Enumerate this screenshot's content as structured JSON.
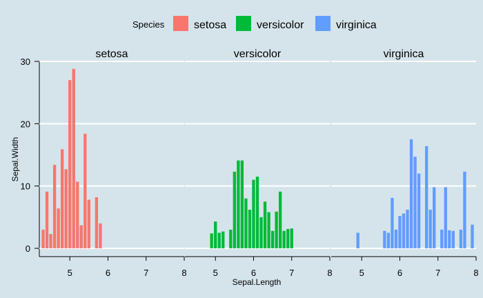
{
  "chart_data": {
    "type": "bar",
    "xlabel": "Sepal.Length",
    "ylabel": "Sepal.Width",
    "xlim": [
      4.2,
      8.0
    ],
    "ylim": [
      0,
      30
    ],
    "x_ticks": [
      5,
      6,
      7,
      8
    ],
    "y_ticks": [
      0,
      10,
      20,
      30
    ],
    "grid": true,
    "legend": {
      "title": "Species",
      "position": "top",
      "entries": [
        "setosa",
        "versicolor",
        "virginica"
      ]
    },
    "series": [
      {
        "name": "setosa",
        "color": "#f8766d",
        "x": [
          4.3,
          4.4,
          4.5,
          4.6,
          4.7,
          4.8,
          4.9,
          5.0,
          5.1,
          5.2,
          5.3,
          5.4,
          5.5,
          5.7,
          5.8
        ],
        "values": [
          3.0,
          9.1,
          2.3,
          13.4,
          6.4,
          15.9,
          12.7,
          27.0,
          28.8,
          10.7,
          3.7,
          18.4,
          7.8,
          8.2,
          4.0
        ]
      },
      {
        "name": "versicolor",
        "color": "#00ba38",
        "x": [
          4.9,
          5.0,
          5.1,
          5.2,
          5.4,
          5.5,
          5.6,
          5.7,
          5.8,
          5.9,
          6.0,
          6.1,
          6.2,
          6.3,
          6.4,
          6.5,
          6.6,
          6.7,
          6.8,
          6.9,
          7.0
        ],
        "values": [
          2.4,
          4.3,
          2.5,
          2.7,
          3.0,
          12.3,
          14.1,
          14.1,
          8.0,
          6.2,
          11.0,
          11.5,
          5.0,
          7.5,
          5.8,
          2.8,
          5.9,
          9.1,
          2.8,
          3.1,
          3.2
        ]
      },
      {
        "name": "virginica",
        "color": "#619cff",
        "x": [
          4.9,
          5.6,
          5.7,
          5.8,
          5.9,
          6.0,
          6.1,
          6.2,
          6.3,
          6.4,
          6.5,
          6.7,
          6.8,
          6.9,
          7.1,
          7.2,
          7.3,
          7.4,
          7.6,
          7.7,
          7.9
        ],
        "values": [
          2.5,
          2.8,
          2.5,
          8.1,
          3.0,
          5.2,
          5.6,
          6.2,
          17.5,
          14.7,
          12.0,
          16.4,
          6.2,
          9.8,
          3.0,
          9.8,
          2.9,
          2.8,
          3.0,
          12.3,
          3.8
        ]
      }
    ]
  }
}
